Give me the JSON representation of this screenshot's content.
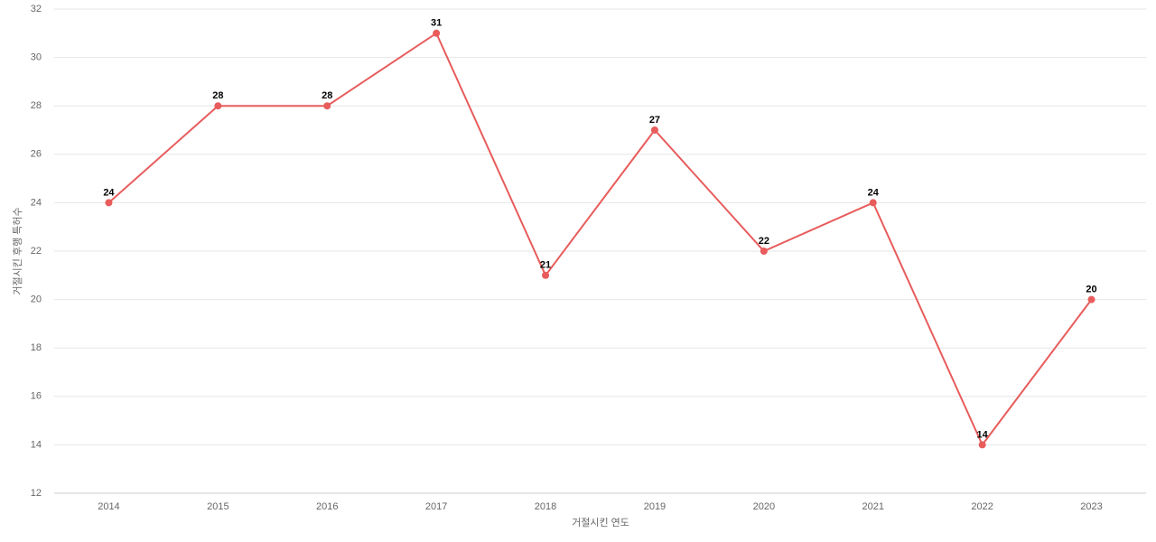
{
  "chart_data": {
    "type": "line",
    "x_label": "거절시킨 연도",
    "y_label": "거절시킨 후행 특허수",
    "categories": [
      "2014",
      "2015",
      "2016",
      "2017",
      "2018",
      "2019",
      "2020",
      "2021",
      "2022",
      "2023"
    ],
    "series": [
      {
        "name": "거절시킨 후행 특허수",
        "color": "#e85c5c",
        "values": [
          24,
          28,
          28,
          31,
          21,
          27,
          22,
          24,
          14,
          20
        ]
      }
    ],
    "ylim": [
      12,
      32
    ],
    "yticks": [
      12,
      14,
      16,
      18,
      20,
      22,
      24,
      26,
      28,
      30,
      32
    ],
    "grid": true
  }
}
